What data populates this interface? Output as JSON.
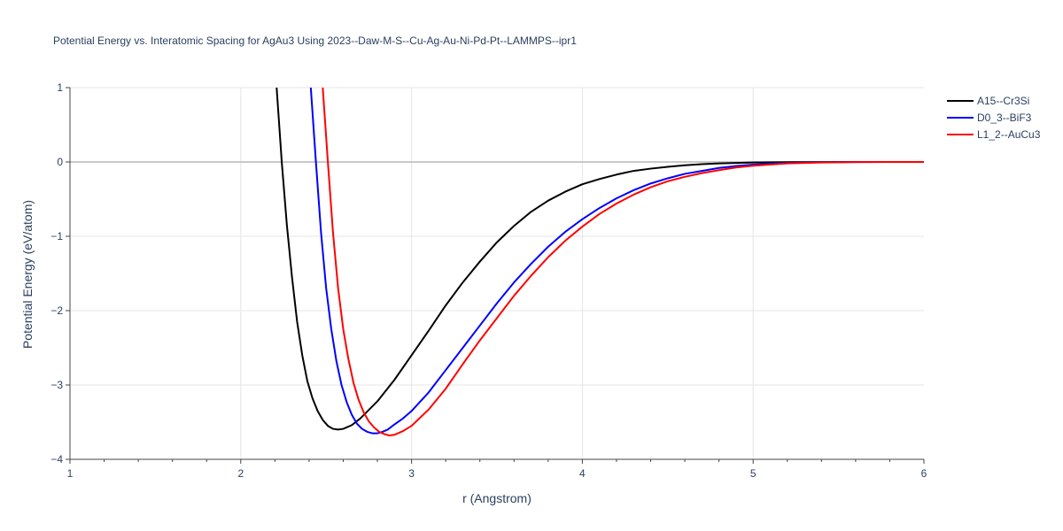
{
  "chart_data": {
    "type": "line",
    "title": "Potential Energy vs. Interatomic Spacing for AgAu3 Using 2023--Daw-M-S--Cu-Ag-Au-Ni-Pd-Pt--LAMMPS--ipr1",
    "xlabel": "r (Angstrom)",
    "ylabel": "Potential Energy (eV/atom)",
    "xlim": [
      1,
      6
    ],
    "ylim": [
      -4,
      1
    ],
    "xticks": [
      1,
      2,
      3,
      4,
      5,
      6
    ],
    "yticks": [
      1,
      0,
      -1,
      -2,
      -3,
      -4
    ],
    "ytick_labels": [
      "1",
      "0",
      "−1",
      "−2",
      "−3",
      "−4"
    ],
    "grid": true,
    "legend_position": "top-right",
    "series": [
      {
        "name": "A15--Cr3Si",
        "color": "#000000",
        "x": [
          2.21,
          2.24,
          2.27,
          2.3,
          2.33,
          2.36,
          2.39,
          2.42,
          2.45,
          2.48,
          2.51,
          2.54,
          2.57,
          2.6,
          2.65,
          2.7,
          2.8,
          2.9,
          3.0,
          3.1,
          3.2,
          3.3,
          3.4,
          3.5,
          3.6,
          3.7,
          3.8,
          3.9,
          4.0,
          4.1,
          4.2,
          4.3,
          4.4,
          4.5,
          4.6,
          4.7,
          4.8,
          4.9,
          5.0,
          5.2,
          5.4,
          5.6,
          5.8,
          6.0
        ],
        "y": [
          1.0,
          0.0,
          -0.85,
          -1.55,
          -2.15,
          -2.6,
          -2.95,
          -3.18,
          -3.35,
          -3.47,
          -3.55,
          -3.59,
          -3.6,
          -3.59,
          -3.54,
          -3.45,
          -3.22,
          -2.93,
          -2.6,
          -2.27,
          -1.93,
          -1.62,
          -1.34,
          -1.08,
          -0.86,
          -0.67,
          -0.52,
          -0.4,
          -0.3,
          -0.23,
          -0.17,
          -0.12,
          -0.09,
          -0.065,
          -0.045,
          -0.03,
          -0.02,
          -0.013,
          -0.008,
          -0.003,
          -0.001,
          0.0,
          0.0,
          0.0
        ]
      },
      {
        "name": "D0_3--BiF3",
        "color": "#0000ff",
        "x": [
          2.41,
          2.44,
          2.47,
          2.5,
          2.53,
          2.56,
          2.59,
          2.62,
          2.65,
          2.68,
          2.71,
          2.74,
          2.77,
          2.8,
          2.83,
          2.86,
          2.9,
          2.95,
          3.0,
          3.1,
          3.2,
          3.3,
          3.4,
          3.5,
          3.6,
          3.7,
          3.8,
          3.9,
          4.0,
          4.1,
          4.2,
          4.3,
          4.4,
          4.5,
          4.6,
          4.7,
          4.8,
          4.9,
          5.0,
          5.2,
          5.4,
          5.6,
          5.8,
          6.0
        ],
        "y": [
          1.0,
          0.0,
          -0.95,
          -1.7,
          -2.25,
          -2.68,
          -3.0,
          -3.23,
          -3.4,
          -3.52,
          -3.59,
          -3.63,
          -3.65,
          -3.65,
          -3.63,
          -3.6,
          -3.53,
          -3.45,
          -3.35,
          -3.1,
          -2.8,
          -2.5,
          -2.2,
          -1.9,
          -1.62,
          -1.37,
          -1.14,
          -0.94,
          -0.77,
          -0.62,
          -0.49,
          -0.38,
          -0.29,
          -0.22,
          -0.16,
          -0.12,
          -0.08,
          -0.055,
          -0.035,
          -0.013,
          -0.004,
          -0.001,
          0.0,
          0.0
        ]
      },
      {
        "name": "L1_2--AuCu3",
        "color": "#ff0000",
        "x": [
          2.48,
          2.51,
          2.54,
          2.57,
          2.6,
          2.63,
          2.66,
          2.69,
          2.72,
          2.75,
          2.78,
          2.81,
          2.84,
          2.87,
          2.9,
          2.95,
          3.0,
          3.1,
          3.2,
          3.3,
          3.4,
          3.5,
          3.6,
          3.7,
          3.8,
          3.9,
          4.0,
          4.1,
          4.2,
          4.3,
          4.4,
          4.5,
          4.6,
          4.7,
          4.8,
          4.9,
          5.0,
          5.2,
          5.4,
          5.6,
          5.8,
          6.0
        ],
        "y": [
          1.0,
          0.0,
          -0.95,
          -1.7,
          -2.25,
          -2.65,
          -2.97,
          -3.2,
          -3.37,
          -3.49,
          -3.57,
          -3.63,
          -3.66,
          -3.68,
          -3.67,
          -3.62,
          -3.55,
          -3.33,
          -3.05,
          -2.72,
          -2.4,
          -2.1,
          -1.8,
          -1.53,
          -1.28,
          -1.06,
          -0.87,
          -0.7,
          -0.56,
          -0.44,
          -0.34,
          -0.26,
          -0.2,
          -0.15,
          -0.11,
          -0.075,
          -0.05,
          -0.02,
          -0.007,
          -0.002,
          0.0,
          0.0
        ]
      }
    ]
  }
}
